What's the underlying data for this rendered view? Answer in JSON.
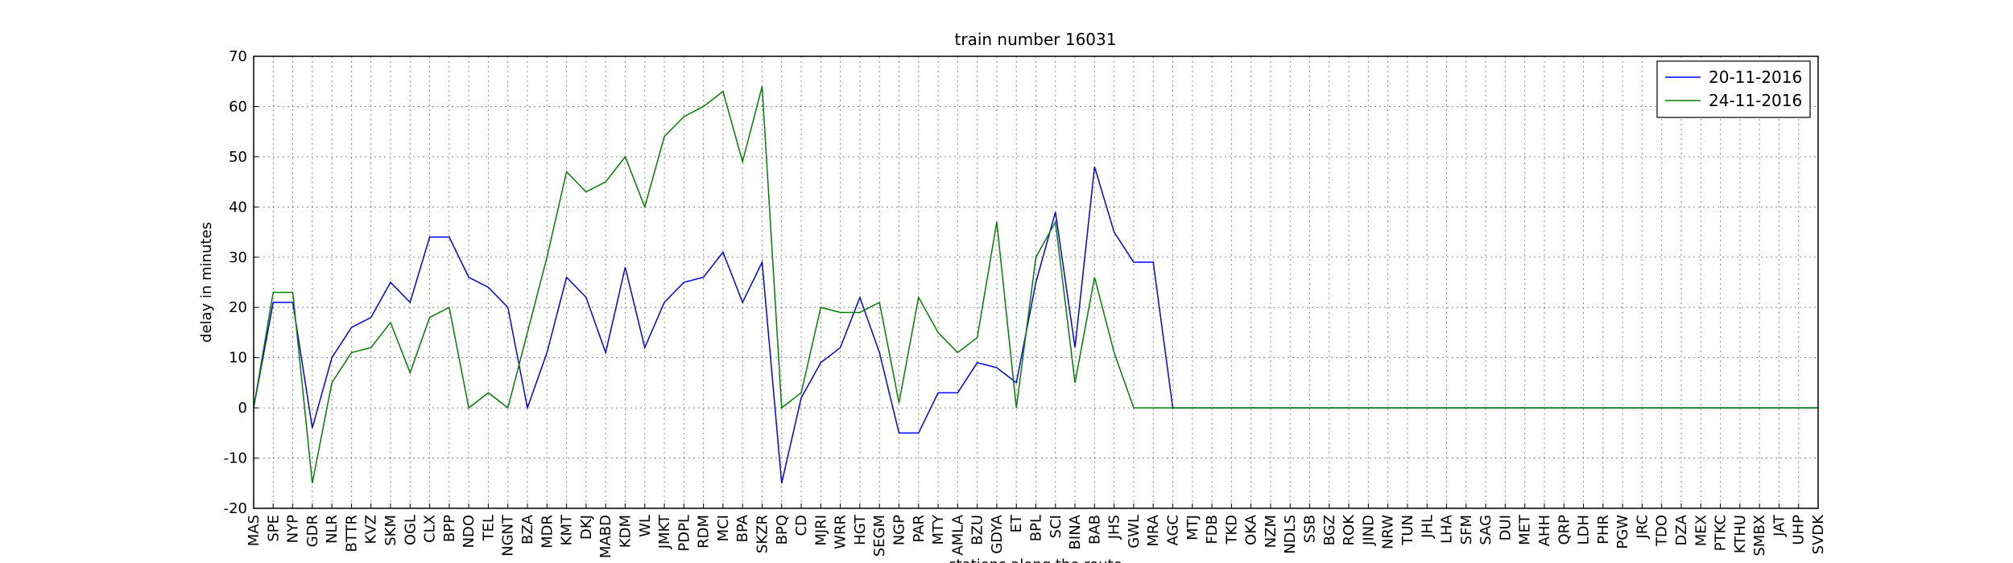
{
  "chart_data": {
    "type": "line",
    "title": "train number 16031",
    "x_label": "stations along the route",
    "y_label": "delay in minutes",
    "categories": [
      "MAS",
      "SPE",
      "NYP",
      "GDR",
      "NLR",
      "BTTR",
      "KVZ",
      "SKM",
      "OGL",
      "CLX",
      "BPP",
      "NDO",
      "TEL",
      "NGNT",
      "BZA",
      "MDR",
      "KMT",
      "DKJ",
      "MABD",
      "KDM",
      "WL",
      "JMKT",
      "PDPL",
      "RDM",
      "MCI",
      "BPA",
      "SKZR",
      "BPQ",
      "CD",
      "MJRI",
      "WRR",
      "HGT",
      "SEGM",
      "NGP",
      "PAR",
      "MTY",
      "AMLA",
      "BZU",
      "GDYA",
      "ET",
      "BPL",
      "SCI",
      "BINA",
      "BAB",
      "JHS",
      "GWL",
      "MRA",
      "AGC",
      "MTJ",
      "FDB",
      "TKD",
      "OKA",
      "NZM",
      "NDLS",
      "SSB",
      "BGZ",
      "ROK",
      "JIND",
      "NRW",
      "TUN",
      "JHL",
      "LHA",
      "SFM",
      "SAG",
      "DUI",
      "MET",
      "AHH",
      "QRP",
      "LDH",
      "PHR",
      "PGW",
      "JRC",
      "TDO",
      "DZA",
      "MEX",
      "PTKC",
      "KTHU",
      "SMBX",
      "JAT",
      "UHP",
      "SVDK"
    ],
    "series": [
      {
        "name": "20-11-2016",
        "color": "#0000ff",
        "values": [
          0,
          21,
          21,
          -4,
          10,
          16,
          18,
          25,
          21,
          34,
          34,
          26,
          24,
          20,
          0,
          11,
          26,
          22,
          11,
          28,
          12,
          21,
          25,
          26,
          31,
          21,
          29,
          -15,
          2,
          9,
          12,
          22,
          11,
          -5,
          -5,
          3,
          3,
          9,
          8,
          5,
          25,
          39,
          12,
          48,
          35,
          29,
          29,
          0,
          0,
          0,
          0,
          0,
          0,
          0,
          0,
          0,
          0,
          0,
          0,
          0,
          0,
          0,
          0,
          0,
          0,
          0,
          0,
          0,
          0,
          0,
          0,
          0,
          0,
          0,
          0,
          0,
          0,
          0,
          0,
          0,
          0
        ]
      },
      {
        "name": "24-11-2016",
        "color": "#008000",
        "values": [
          0,
          23,
          23,
          -15,
          5,
          11,
          12,
          17,
          7,
          18,
          20,
          0,
          3,
          0,
          15,
          30,
          47,
          43,
          45,
          50,
          40,
          54,
          58,
          60,
          63,
          49,
          64,
          0,
          3,
          20,
          19,
          19,
          21,
          1,
          22,
          15,
          11,
          14,
          37,
          0,
          30,
          37,
          5,
          26,
          11,
          0,
          0,
          0,
          0,
          0,
          0,
          0,
          0,
          0,
          0,
          0,
          0,
          0,
          0,
          0,
          0,
          0,
          0,
          0,
          0,
          0,
          0,
          0,
          0,
          0,
          0,
          0,
          0,
          0,
          0,
          0,
          0,
          0,
          0,
          0,
          0
        ]
      }
    ],
    "ylim": [
      -20,
      70
    ],
    "yticks": [
      -20,
      -10,
      0,
      10,
      20,
      30,
      40,
      50,
      60,
      70
    ],
    "grid": true,
    "legend": "upper right"
  }
}
